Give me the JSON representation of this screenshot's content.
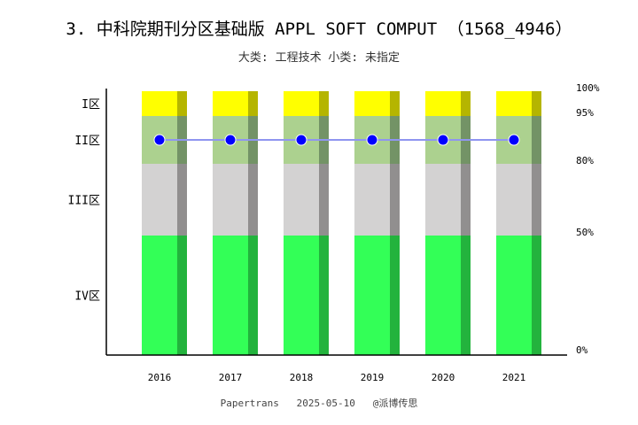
{
  "title": "3. 中科院期刊分区基础版 APPL SOFT COMPUT （1568_4946）",
  "subtitle": "大类: 工程技术 小类: 未指定",
  "footer": "Papertrans   2025-05-10   @派博传思",
  "chart_data": {
    "type": "bar",
    "categories": [
      "2016",
      "2017",
      "2018",
      "2019",
      "2020",
      "2021"
    ],
    "zones": [
      {
        "label": "I区",
        "from": 95,
        "to": 100,
        "color": "#ffff00",
        "shade": "#b5b500"
      },
      {
        "label": "II区",
        "from": 80,
        "to": 95,
        "color": "#acd18f",
        "shade": "#739366"
      },
      {
        "label": "III区",
        "from": 50,
        "to": 80,
        "color": "#d3d2d2",
        "shade": "#918f8f"
      },
      {
        "label": "IV区",
        "from": 0,
        "to": 50,
        "color": "#33ff57",
        "shade": "#23b33d"
      }
    ],
    "right_ticks": [
      "0%",
      "50%",
      "80%",
      "95%",
      "100%"
    ],
    "series": [
      {
        "values": [
          "II区",
          "II区",
          "II区",
          "II区",
          "II区",
          "II区"
        ],
        "color": "#0000ff",
        "line_color": "#8f95f0"
      }
    ],
    "ylim": [
      0,
      100
    ]
  }
}
